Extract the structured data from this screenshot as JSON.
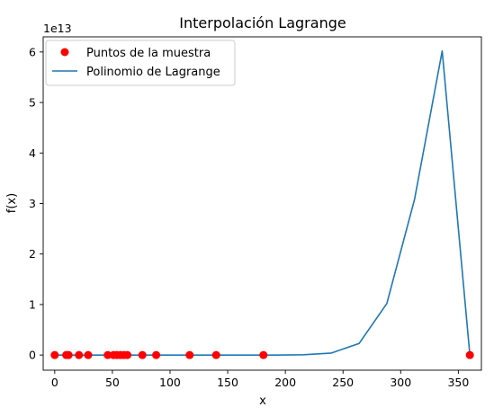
{
  "chart_data": {
    "type": "line",
    "title": "Interpolación Lagrange",
    "xlabel": "x",
    "ylabel": "f(x)",
    "y_offset_label": "1e13",
    "xlim": [
      -10,
      370
    ],
    "ylim": [
      -3000000000000.0,
      63000000000000.0
    ],
    "x_ticks": [
      0,
      50,
      100,
      150,
      200,
      250,
      300,
      350
    ],
    "y_ticks": [
      0,
      10000000000000.0,
      20000000000000.0,
      30000000000000.0,
      40000000000000.0,
      50000000000000.0,
      60000000000000.0
    ],
    "x_tick_labels": [
      "0",
      "50",
      "100",
      "150",
      "200",
      "250",
      "300",
      "350"
    ],
    "y_tick_labels": [
      "0",
      "1",
      "2",
      "3",
      "4",
      "5",
      "6"
    ],
    "grid": false,
    "legend_position": "top-left",
    "series": [
      {
        "name": "Puntos de la muestra",
        "kind": "scatter",
        "color": "#ff0000",
        "x": [
          0,
          10,
          12,
          21,
          29,
          46,
          51,
          54,
          57,
          60,
          63,
          76,
          88,
          117,
          140,
          181,
          360
        ],
        "y": [
          0,
          0,
          0,
          0,
          0,
          0,
          0,
          0,
          0,
          0,
          0,
          0,
          0,
          0,
          0,
          0,
          0
        ]
      },
      {
        "name": "Polinomio de Lagrange",
        "kind": "line",
        "color": "#1f77b4",
        "x": [
          0,
          24,
          48,
          72,
          96,
          120,
          144,
          168,
          192,
          216,
          240,
          264,
          288,
          312,
          336,
          360
        ],
        "y": [
          0,
          0,
          0,
          0,
          0,
          0,
          0,
          0,
          0,
          50000000000.0,
          400000000000.0,
          2300000000000.0,
          10200000000000.0,
          30800000000000.0,
          60200000000000.0,
          0
        ]
      }
    ]
  }
}
